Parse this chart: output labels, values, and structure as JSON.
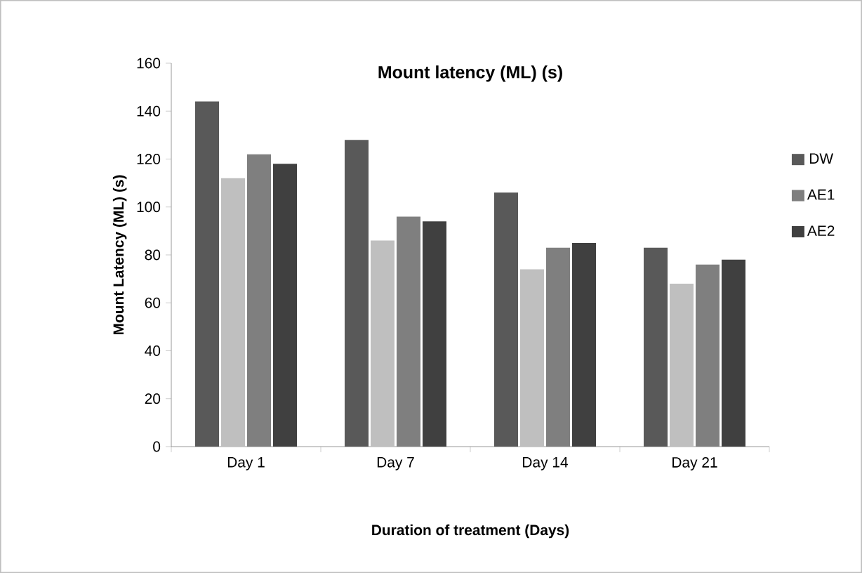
{
  "chart_data": {
    "type": "bar",
    "title": "Mount latency (ML) (s)",
    "xlabel": "Duration of treatment (Days)",
    "ylabel": "Mount Latency (ML) (s)",
    "categories": [
      "Day 1",
      "Day 7",
      "Day 14",
      "Day 21"
    ],
    "series": [
      {
        "name": "DW",
        "color": "#595959",
        "values": [
          144,
          128,
          106,
          83
        ]
      },
      {
        "color": "#bfbfbf",
        "values": [
          112,
          86,
          74,
          68
        ]
      },
      {
        "name": "AE1",
        "color": "#7f7f7f",
        "values": [
          122,
          96,
          83,
          76
        ]
      },
      {
        "name": "AE2",
        "color": "#404040",
        "values": [
          118,
          94,
          85,
          78
        ]
      }
    ],
    "ylim": [
      0,
      160
    ],
    "yticks": [
      0,
      20,
      40,
      60,
      80,
      100,
      120,
      140,
      160
    ],
    "grid": false,
    "legend": "right"
  }
}
